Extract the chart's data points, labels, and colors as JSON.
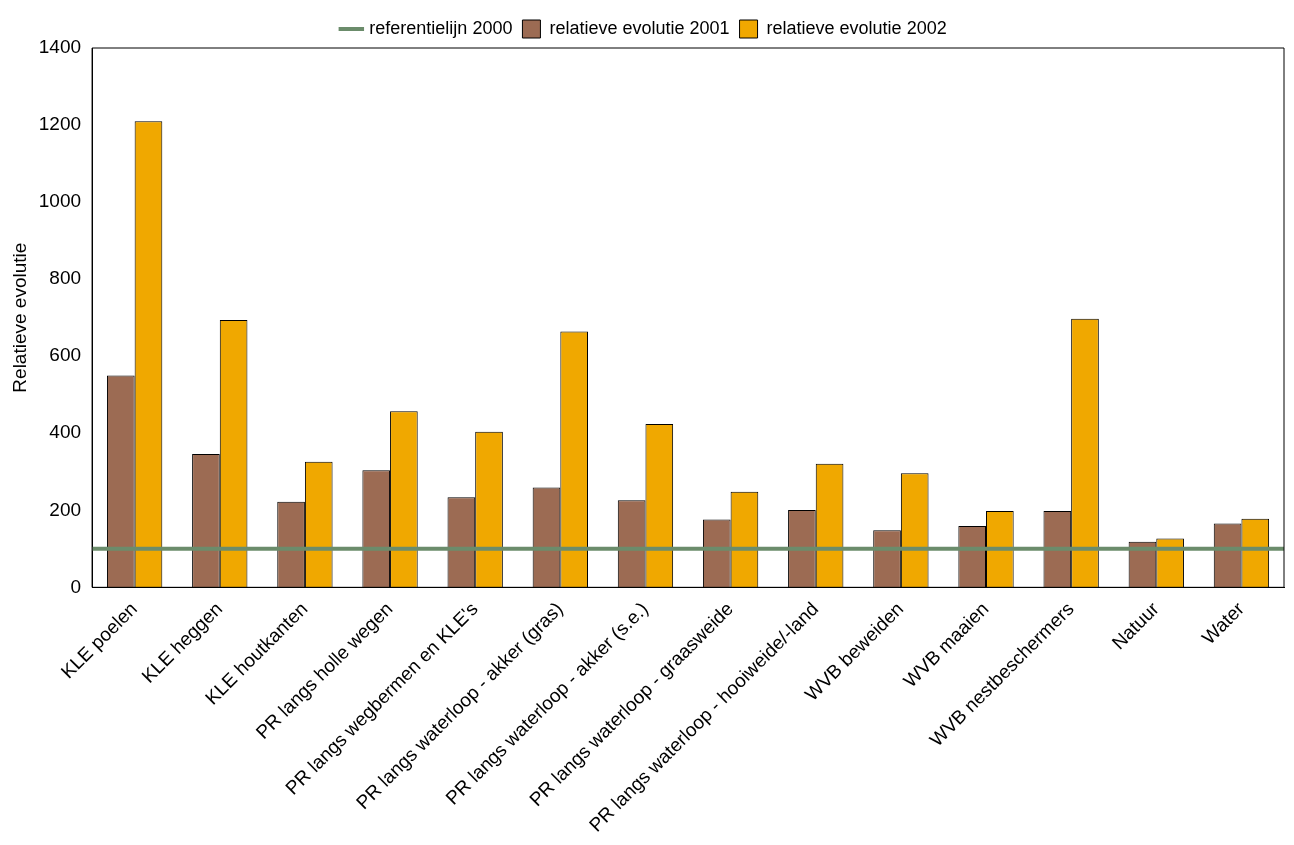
{
  "chart_data": {
    "type": "bar",
    "ylabel": "Relatieve evolutie",
    "categories": [
      "KLE poelen",
      "KLE heggen",
      "KLE houtkanten",
      "PR langs holle wegen",
      "PR langs wegbermen en KLE's",
      "PR langs waterloop - akker (gras)",
      "PR langs waterloop - akker (s.e.)",
      "PR langs waterloop - graasweide",
      "PR langs waterloop - hooiweide/-land",
      "WVB beweiden",
      "WVB maaien",
      "WVB nestbeschermers",
      "Natuur",
      "Water"
    ],
    "series": [
      {
        "name": "relatieve evolutie 2001",
        "color": "#9c6b53",
        "values": [
          550,
          346,
          222,
          304,
          234,
          259,
          226,
          176,
          201,
          148,
          159,
          198,
          118,
          166
        ]
      },
      {
        "name": "relatieve evolutie 2002",
        "color": "#f0a800",
        "values": [
          1210,
          694,
          326,
          457,
          404,
          664,
          424,
          248,
          321,
          296,
          198,
          697,
          127,
          178
        ]
      }
    ],
    "ref_lines": [
      {
        "axis": "y",
        "value": 100,
        "label": "referentielijn 2000",
        "color": "#6b8c6b"
      }
    ],
    "ylim": [
      0,
      1400
    ],
    "yticks": [
      0,
      200,
      400,
      600,
      800,
      1000,
      1200,
      1400
    ],
    "grid": false,
    "legend": "top"
  }
}
